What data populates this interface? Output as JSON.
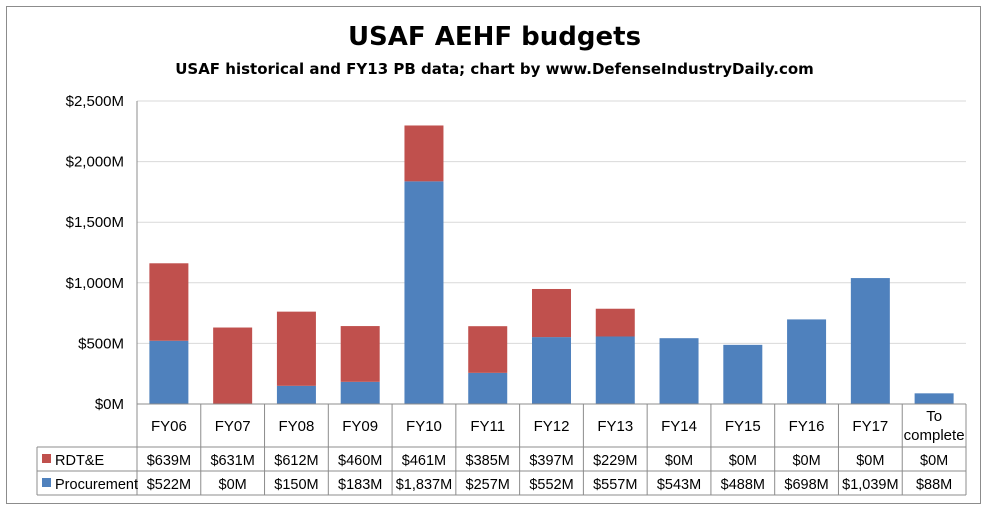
{
  "chart_data": {
    "type": "bar",
    "stacked": true,
    "title": "USAF AEHF budgets",
    "subtitle": "USAF historical and FY13 PB data; chart by www.DefenseIndustryDaily.com",
    "categories": [
      "FY06",
      "FY07",
      "FY08",
      "FY09",
      "FY10",
      "FY11",
      "FY12",
      "FY13",
      "FY14",
      "FY15",
      "FY16",
      "FY17",
      "To complete"
    ],
    "series": [
      {
        "name": "Procurement",
        "color": "#4f81bd",
        "values": [
          522,
          0,
          150,
          183,
          1837,
          257,
          552,
          557,
          543,
          488,
          698,
          1039,
          88
        ],
        "labels": [
          "$522M",
          "$0M",
          "$150M",
          "$183M",
          "$1,837M",
          "$257M",
          "$552M",
          "$557M",
          "$543M",
          "$488M",
          "$698M",
          "$1,039M",
          "$88M"
        ]
      },
      {
        "name": "RDT&E",
        "color": "#c0504d",
        "values": [
          639,
          631,
          612,
          460,
          461,
          385,
          397,
          229,
          0,
          0,
          0,
          0,
          0
        ],
        "labels": [
          "$639M",
          "$631M",
          "$612M",
          "$460M",
          "$461M",
          "$385M",
          "$397M",
          "$229M",
          "$0M",
          "$0M",
          "$0M",
          "$0M",
          "$0M"
        ]
      }
    ],
    "ylim": [
      0,
      2500
    ],
    "yticks": [
      0,
      500,
      1000,
      1500,
      2000,
      2500
    ],
    "ytick_labels": [
      "$0M",
      "$500M",
      "$1,000M",
      "$1,500M",
      "$2,000M",
      "$2,500M"
    ],
    "grid": true,
    "legend": "data-table"
  }
}
